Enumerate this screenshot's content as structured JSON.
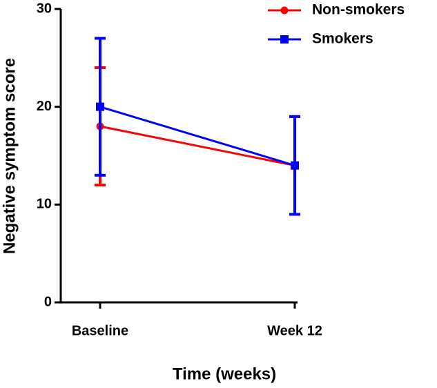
{
  "chart_data": {
    "type": "line",
    "x_label": "Time (weeks)",
    "y_label": "Negative symptom score",
    "categories": [
      "Baseline",
      "Week 12"
    ],
    "series": [
      {
        "name": "Non-smokers",
        "color": "#ff0000",
        "marker": "circle",
        "values": [
          18,
          14
        ],
        "errors": [
          6,
          5
        ]
      },
      {
        "name": "Smokers",
        "color": "#0000ff",
        "marker": "square",
        "values": [
          20,
          14
        ],
        "errors": [
          7,
          5
        ]
      }
    ],
    "ylim": [
      0,
      30
    ],
    "yticks": [
      0,
      10,
      20,
      30
    ],
    "grid": false,
    "legend": "upper right"
  }
}
